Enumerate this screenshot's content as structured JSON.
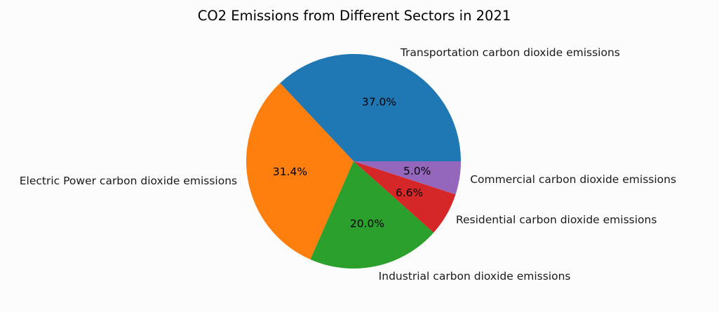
{
  "chart_data": {
    "type": "pie",
    "title": "CO2 Emissions from Different Sectors in 2021",
    "start_angle_deg": 0,
    "direction": "counterclockwise",
    "slices": [
      {
        "label": "Transportation carbon dioxide emissions",
        "value": 37.0,
        "pct_text": "37.0%",
        "color": "#1f77b4"
      },
      {
        "label": "Electric Power carbon dioxide emissions",
        "value": 31.4,
        "pct_text": "31.4%",
        "color": "#ff7f0e"
      },
      {
        "label": "Industrial carbon dioxide emissions",
        "value": 20.0,
        "pct_text": "20.0%",
        "color": "#2ca02c"
      },
      {
        "label": "Residential carbon dioxide emissions",
        "value": 6.6,
        "pct_text": "6.6%",
        "color": "#d62728"
      },
      {
        "label": "Commercial carbon dioxide emissions",
        "value": 5.0,
        "pct_text": "5.0%",
        "color": "#9467bd"
      }
    ]
  }
}
